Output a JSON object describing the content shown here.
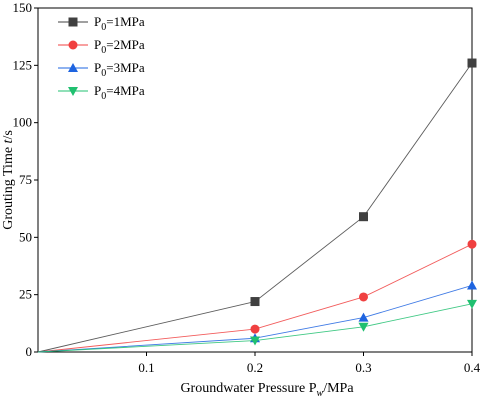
{
  "chart_data": {
    "type": "line",
    "x": [
      0.0,
      0.2,
      0.3,
      0.4
    ],
    "series": [
      {
        "name": "P0=1MPa",
        "values": [
          0,
          22,
          59,
          126
        ],
        "color": "#404040",
        "marker": "square"
      },
      {
        "name": "P0=2MPa",
        "values": [
          0,
          10,
          24,
          47
        ],
        "color": "#f04040",
        "marker": "circle"
      },
      {
        "name": "P0=3MPa",
        "values": [
          0,
          6,
          15,
          29
        ],
        "color": "#1e64e0",
        "marker": "triangle-up"
      },
      {
        "name": "P0=4MPa",
        "values": [
          0,
          5,
          11,
          21
        ],
        "color": "#20c070",
        "marker": "triangle-down"
      }
    ],
    "xlabel": "Groundwater Pressure P_w/MPa",
    "ylabel": "Grouting Time t/s",
    "xlim": [
      0.0,
      0.4
    ],
    "ylim": [
      0,
      150
    ],
    "xticks": [
      0.1,
      0.2,
      0.3,
      0.4
    ],
    "xtick_labels": [
      "0.1",
      "0.2",
      "0.3",
      "0.4"
    ],
    "yticks": [
      0,
      25,
      50,
      75,
      100,
      125,
      150
    ],
    "ytick_labels": [
      "0",
      "25",
      "50",
      "75",
      "100",
      "125",
      "150"
    ],
    "legend_position": "top-left",
    "grid": false
  }
}
